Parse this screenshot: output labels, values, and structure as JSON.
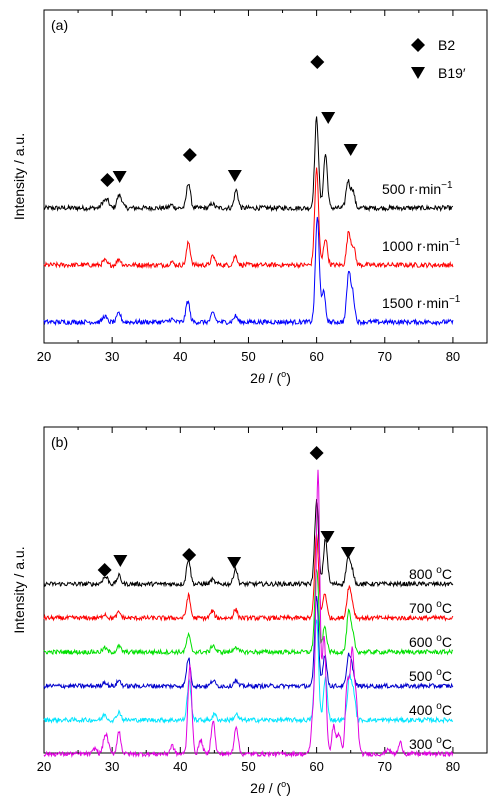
{
  "chart_data": [
    {
      "type": "line",
      "panel_label": "(a)",
      "xlabel_prefix": "2",
      "xlabel_theta": "θ",
      "xlabel_suffix": " / (",
      "xlabel_unit": "o",
      "xlabel_close": ")",
      "ylabel": "Intensity / a.u.",
      "xlim": [
        20,
        85
      ],
      "x_ticks": [
        20,
        30,
        40,
        50,
        60,
        70,
        80
      ],
      "legend": [
        {
          "marker": "diamond",
          "label": "B2"
        },
        {
          "marker": "triangle-down",
          "label": "B19′"
        }
      ],
      "legend_position": "top-right",
      "series": [
        {
          "label_value": "500",
          "label_unit": " r·min",
          "label_exp": "−1",
          "color": "#000000",
          "peaks": [
            [
              28.7,
              0.2
            ],
            [
              29.3,
              0.25
            ],
            [
              30.9,
              0.3
            ],
            [
              31.3,
              0.25
            ],
            [
              38.7,
              0.1
            ],
            [
              41.2,
              0.85
            ],
            [
              44.7,
              0.15
            ],
            [
              48.2,
              0.6
            ],
            [
              60.0,
              3.0
            ],
            [
              61.3,
              1.8
            ],
            [
              64.6,
              0.9
            ],
            [
              65.3,
              0.6
            ]
          ]
        },
        {
          "label_value": "1000",
          "label_unit": " r·min",
          "label_exp": "−1",
          "color": "#ff0000",
          "peaks": [
            [
              28.9,
              0.15
            ],
            [
              31.0,
              0.2
            ],
            [
              38.7,
              0.1
            ],
            [
              41.2,
              0.75
            ],
            [
              44.8,
              0.3
            ],
            [
              48.1,
              0.3
            ],
            [
              60.0,
              3.2
            ],
            [
              61.3,
              0.9
            ],
            [
              64.7,
              1.1
            ],
            [
              65.4,
              0.6
            ]
          ]
        },
        {
          "label_value": "1500",
          "label_unit": " r·min",
          "label_exp": "−1",
          "color": "#0000ff",
          "peaks": [
            [
              28.9,
              0.2
            ],
            [
              31.0,
              0.3
            ],
            [
              38.7,
              0.1
            ],
            [
              41.1,
              0.7
            ],
            [
              44.8,
              0.3
            ],
            [
              48.1,
              0.2
            ],
            [
              60.1,
              3.5
            ],
            [
              61.0,
              1.0
            ],
            [
              64.7,
              1.6
            ],
            [
              65.3,
              0.9
            ]
          ]
        }
      ],
      "markers": [
        {
          "type": "diamond",
          "x": 29.3
        },
        {
          "type": "triangle-down",
          "x": 31.1
        },
        {
          "type": "diamond",
          "x": 41.4
        },
        {
          "type": "triangle-down",
          "x": 48.0
        },
        {
          "type": "diamond",
          "x": 60.1
        },
        {
          "type": "triangle-down",
          "x": 61.7
        },
        {
          "type": "triangle-down",
          "x": 65.0
        }
      ]
    },
    {
      "type": "line",
      "panel_label": "(b)",
      "xlabel_prefix": "2",
      "xlabel_theta": "θ",
      "xlabel_suffix": " / (",
      "xlabel_unit": "o",
      "xlabel_close": ")",
      "ylabel": "Intensity / a.u.",
      "xlim": [
        20,
        85
      ],
      "x_ticks": [
        20,
        30,
        40,
        50,
        60,
        70,
        80
      ],
      "series": [
        {
          "label_value": "800 ",
          "label_unit": "C",
          "label_exp": "o",
          "color": "#000000",
          "peaks": [
            [
              28.7,
              0.15
            ],
            [
              29.2,
              0.2
            ],
            [
              31.0,
              0.3
            ],
            [
              41.2,
              0.9
            ],
            [
              44.7,
              0.15
            ],
            [
              48.1,
              0.55
            ],
            [
              60.0,
              3.0
            ],
            [
              61.3,
              1.6
            ],
            [
              64.6,
              0.9
            ],
            [
              65.2,
              0.5
            ]
          ]
        },
        {
          "label_value": "700 ",
          "label_unit": "C",
          "label_exp": "o",
          "color": "#ff0000",
          "peaks": [
            [
              28.9,
              0.15
            ],
            [
              31.0,
              0.2
            ],
            [
              41.2,
              0.8
            ],
            [
              44.7,
              0.25
            ],
            [
              48.1,
              0.3
            ],
            [
              60.0,
              3.0
            ],
            [
              61.2,
              0.9
            ],
            [
              64.7,
              1.0
            ],
            [
              65.2,
              0.5
            ]
          ]
        },
        {
          "label_value": "600 ",
          "label_unit": "C",
          "label_exp": "o",
          "color": "#00e000",
          "peaks": [
            [
              28.9,
              0.15
            ],
            [
              31.0,
              0.2
            ],
            [
              41.2,
              0.6
            ],
            [
              44.8,
              0.25
            ],
            [
              48.1,
              0.2
            ],
            [
              60.0,
              3.0
            ],
            [
              61.2,
              0.9
            ],
            [
              64.7,
              1.4
            ],
            [
              65.3,
              0.6
            ]
          ]
        },
        {
          "label_value": "500 ",
          "label_unit": "C",
          "label_exp": "o",
          "color": "#0000cc",
          "peaks": [
            [
              28.9,
              0.15
            ],
            [
              31.0,
              0.2
            ],
            [
              41.2,
              1.0
            ],
            [
              44.8,
              0.2
            ],
            [
              48.1,
              0.2
            ],
            [
              60.0,
              3.2
            ],
            [
              61.2,
              1.1
            ],
            [
              64.7,
              1.0
            ],
            [
              65.2,
              0.6
            ]
          ]
        },
        {
          "label_value": "400 ",
          "label_unit": "C",
          "label_exp": "o",
          "color": "#00e5ff",
          "peaks": [
            [
              28.9,
              0.2
            ],
            [
              31.0,
              0.3
            ],
            [
              41.3,
              1.4
            ],
            [
              45.0,
              0.2
            ],
            [
              48.2,
              0.2
            ],
            [
              60.0,
              3.6
            ],
            [
              61.3,
              1.5
            ],
            [
              64.8,
              1.5
            ],
            [
              65.4,
              1.0
            ]
          ]
        },
        {
          "label_value": "300 ",
          "label_unit": "C",
          "label_exp": "o",
          "color": "#e000e0",
          "peaks": [
            [
              27.5,
              0.2
            ],
            [
              28.9,
              0.5
            ],
            [
              29.3,
              0.4
            ],
            [
              31.0,
              0.8
            ],
            [
              38.8,
              0.3
            ],
            [
              41.4,
              3.2
            ],
            [
              43.0,
              0.5
            ],
            [
              44.8,
              1.2
            ],
            [
              48.2,
              1.0
            ],
            [
              59.5,
              1.4
            ],
            [
              60.2,
              10.0
            ],
            [
              61.1,
              4.2
            ],
            [
              62.5,
              1.0
            ],
            [
              63.3,
              0.7
            ],
            [
              64.5,
              2.5
            ],
            [
              65.2,
              3.5
            ],
            [
              65.8,
              1.8
            ],
            [
              70.5,
              0.2
            ],
            [
              72.3,
              0.4
            ]
          ]
        }
      ],
      "markers": [
        {
          "type": "diamond",
          "x": 28.9
        },
        {
          "type": "triangle-down",
          "x": 31.2
        },
        {
          "type": "diamond",
          "x": 41.3
        },
        {
          "type": "triangle-down",
          "x": 47.9
        },
        {
          "type": "diamond",
          "x": 60.0
        },
        {
          "type": "triangle-down",
          "x": 61.6
        },
        {
          "type": "triangle-down",
          "x": 64.6
        }
      ]
    }
  ]
}
